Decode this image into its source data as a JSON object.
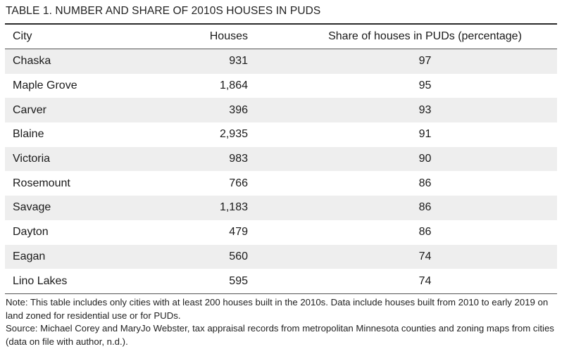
{
  "title": "TABLE 1. NUMBER AND SHARE OF 2010S HOUSES IN PUDS",
  "headers": {
    "city": "City",
    "houses": "Houses",
    "share": "Share of houses in PUDs (percentage)"
  },
  "rows": [
    {
      "city": "Chaska",
      "houses": "931",
      "share": "97"
    },
    {
      "city": "Maple Grove",
      "houses": "1,864",
      "share": "95"
    },
    {
      "city": "Carver",
      "houses": "396",
      "share": "93"
    },
    {
      "city": "Blaine",
      "houses": "2,935",
      "share": "91"
    },
    {
      "city": "Victoria",
      "houses": "983",
      "share": "90"
    },
    {
      "city": "Rosemount",
      "houses": "766",
      "share": "86"
    },
    {
      "city": "Savage",
      "houses": "1,183",
      "share": "86"
    },
    {
      "city": "Dayton",
      "houses": "479",
      "share": "86"
    },
    {
      "city": "Eagan",
      "houses": "560",
      "share": "74"
    },
    {
      "city": "Lino Lakes",
      "houses": "595",
      "share": "74"
    }
  ],
  "notes": {
    "note": "Note: This table includes only cities with at least 200 houses built in the 2010s. Data include houses built from 2010 to early 2019 on land zoned for residential use or for PUDs.",
    "source": "Source: Michael Corey and MaryJo Webster, tax appraisal records from metropolitan Minnesota counties and zoning maps from cities (data on file with author, n.d.)."
  }
}
